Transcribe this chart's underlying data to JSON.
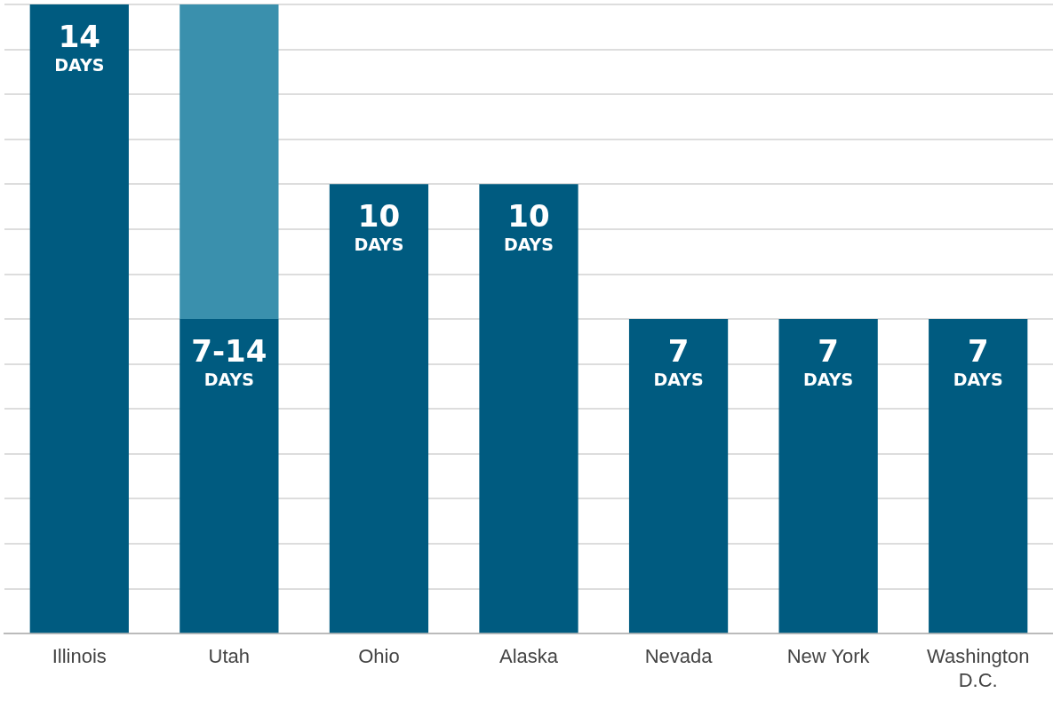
{
  "chart_data": {
    "type": "bar",
    "stacked": true,
    "categories": [
      "Illinois",
      "Utah",
      "Ohio",
      "Alaska",
      "Nevada",
      "New York",
      "Washington D.C."
    ],
    "series": [
      {
        "color": "#005b80",
        "values": [
          14,
          7,
          10,
          10,
          7,
          7,
          7
        ],
        "value_labels": [
          "14 DAYS",
          "7-14 DAYS",
          "10 DAYS",
          "10 DAYS",
          "7 DAYS",
          "7 DAYS",
          "7 DAYS"
        ]
      },
      {
        "color": "#3a90ad",
        "values": [
          null,
          7,
          null,
          null,
          null,
          null,
          null
        ]
      }
    ],
    "ylim": [
      0,
      14
    ],
    "yticks": [
      {
        "value": 0,
        "label": null
      },
      {
        "value": 1,
        "label": null
      },
      {
        "value": 2,
        "label": null
      },
      {
        "value": 3,
        "label": null
      },
      {
        "value": 4,
        "label": null
      },
      {
        "value": 5,
        "label": null
      },
      {
        "value": 6,
        "label": null
      },
      {
        "value": 7,
        "label": null
      },
      {
        "value": 8,
        "label": null
      },
      {
        "value": 9,
        "label": null
      },
      {
        "value": 10,
        "label": null
      },
      {
        "value": 11,
        "label": null
      },
      {
        "value": 12,
        "label": null
      },
      {
        "value": 13,
        "label": null
      },
      {
        "value": 14,
        "label": null
      }
    ],
    "grid": "y",
    "tick_labels": "x",
    "legend": false
  }
}
